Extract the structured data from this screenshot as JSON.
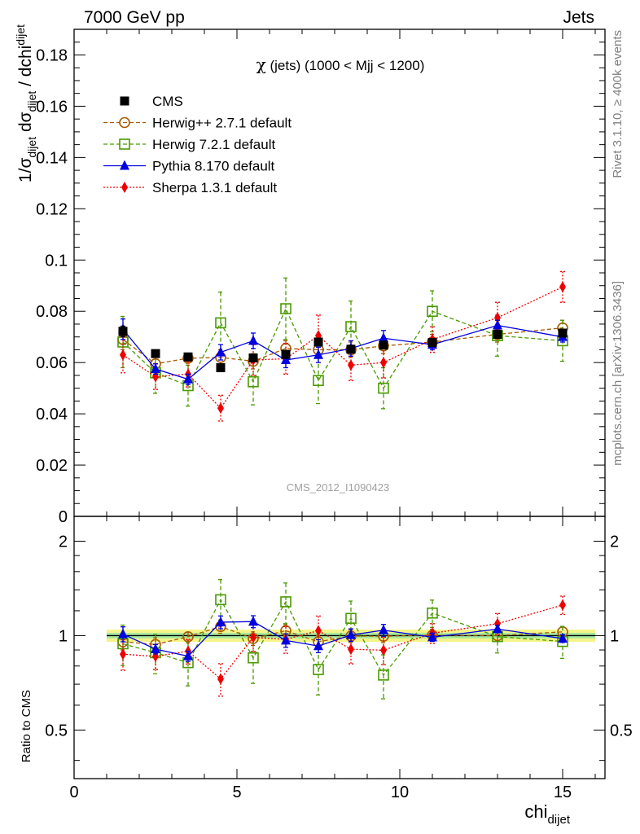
{
  "header": {
    "left": "7000 GeV pp",
    "right": "Jets"
  },
  "side_labels": {
    "rivet": "Rivet 3.1.10, ≥ 400k events",
    "mcplots": "mcplots.cern.ch [arXiv:1306.3436]"
  },
  "watermark": "CMS_2012_I1090423",
  "chart_data": {
    "type": "scatter",
    "title_symbol": "χ",
    "title_rest": " (jets) (1000 < Mjj < 1200)",
    "xlabel": {
      "main": "chi",
      "sub": "dijet"
    },
    "ylabel_top": {
      "p1": "1/σ",
      "s1": "dijet",
      "p2": " dσ",
      "s2": "dijet",
      "p3": " / dchi",
      "s3": "dijet"
    },
    "ylabel_bottom": "Ratio to CMS",
    "xlim": [
      0,
      16.3
    ],
    "ylim_top": [
      0,
      0.19
    ],
    "ylim_bottom_log": [
      0.35,
      2.4
    ],
    "x_ticks": [
      0,
      5,
      10,
      15
    ],
    "y_ticks_top": [
      0,
      0.02,
      0.04,
      0.06,
      0.08,
      0.1,
      0.12,
      0.14,
      0.16,
      0.18
    ],
    "y_tick_labels_top": [
      "0",
      "0.02",
      "0.04",
      "0.06",
      "0.08",
      "0.1",
      "0.12",
      "0.14",
      "0.16",
      "0.18"
    ],
    "y_ticks_bottom": [
      0.5,
      1,
      2
    ],
    "y_tick_labels_bottom": [
      "0.5",
      "1",
      "2"
    ],
    "x": [
      1.5,
      2.5,
      3.5,
      4.5,
      5.5,
      6.5,
      7.5,
      8.5,
      9.5,
      11,
      13,
      15
    ],
    "x_edges": [
      1,
      2,
      3,
      4,
      5,
      6,
      7,
      8,
      9,
      10,
      12,
      14,
      16
    ],
    "cms_band_inner": 0.02,
    "cms_band_outer": 0.045,
    "series": [
      {
        "name": "CMS",
        "color": "#000000",
        "marker": "square-filled",
        "line": "none",
        "values": [
          0.0722,
          0.0635,
          0.0622,
          0.058,
          0.0618,
          0.0632,
          0.068,
          0.0652,
          0.0668,
          0.0678,
          0.071,
          0.0715
        ],
        "err": [
          0.002,
          0.001,
          0.001,
          0.001,
          0.001,
          0.001,
          0.001,
          0.001,
          0.001,
          0.001,
          0.001,
          0.001
        ]
      },
      {
        "name": "Herwig++ 2.7.1 default",
        "color": "#a85a00",
        "marker": "circle-open",
        "line": "dashed",
        "values": [
          0.069,
          0.0595,
          0.0617,
          0.062,
          0.0605,
          0.0655,
          0.065,
          0.065,
          0.0665,
          0.068,
          0.071,
          0.0735
        ],
        "err": [
          0.004,
          0.003,
          0.002,
          0.003,
          0.003,
          0.003,
          0.003,
          0.003,
          0.003,
          0.003,
          0.003,
          0.003
        ]
      },
      {
        "name": "Herwig 7.2.1 default",
        "color": "#4a9a00",
        "marker": "square-open",
        "line": "dashed",
        "values": [
          0.068,
          0.056,
          0.051,
          0.0755,
          0.0525,
          0.081,
          0.053,
          0.074,
          0.05,
          0.08,
          0.0705,
          0.0685
        ],
        "err": [
          0.01,
          0.008,
          0.008,
          0.012,
          0.009,
          0.012,
          0.009,
          0.01,
          0.008,
          0.008,
          0.008,
          0.008
        ]
      },
      {
        "name": "Pythia 8.170 default",
        "color": "#0000e0",
        "marker": "triangle-filled",
        "line": "solid",
        "values": [
          0.073,
          0.0575,
          0.0535,
          0.064,
          0.0685,
          0.061,
          0.063,
          0.0655,
          0.0695,
          0.067,
          0.0745,
          0.07
        ],
        "err": [
          0.004,
          0.002,
          0.002,
          0.003,
          0.003,
          0.003,
          0.003,
          0.003,
          0.003,
          0.002,
          0.002,
          0.002
        ]
      },
      {
        "name": "Sherpa 1.3.1 default",
        "color": "#ee0000",
        "marker": "diamond-filled",
        "line": "dotted",
        "values": [
          0.063,
          0.0545,
          0.0555,
          0.0422,
          0.061,
          0.0615,
          0.0705,
          0.059,
          0.06,
          0.069,
          0.0775,
          0.0895
        ],
        "err": [
          0.007,
          0.005,
          0.005,
          0.005,
          0.006,
          0.006,
          0.008,
          0.006,
          0.006,
          0.005,
          0.006,
          0.006
        ]
      }
    ]
  }
}
